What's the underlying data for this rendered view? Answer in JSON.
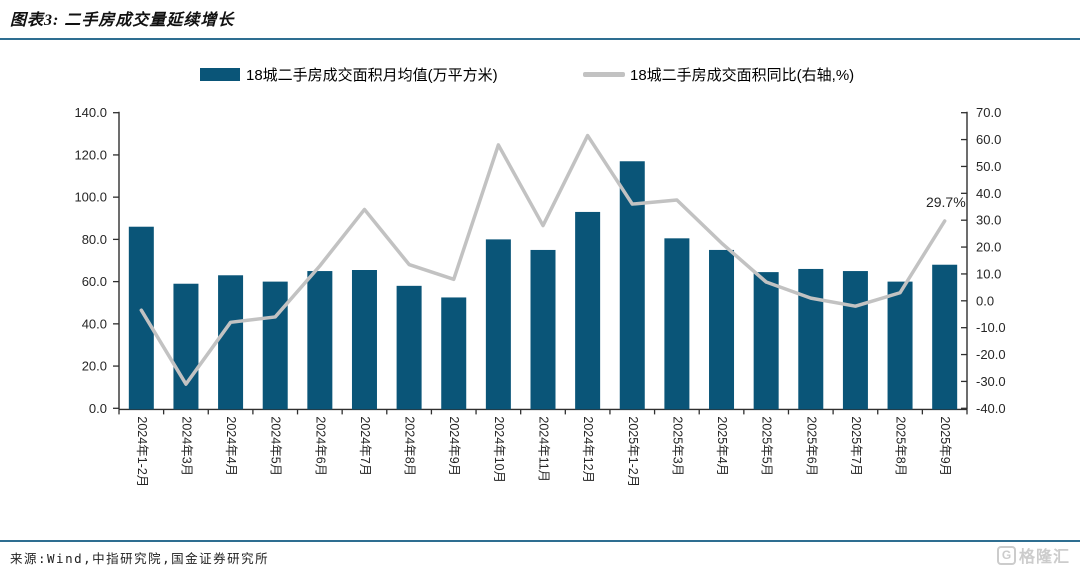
{
  "header": {
    "title": "图表3: 二手房成交量延续增长"
  },
  "legend": {
    "items": [
      {
        "label": "18城二手房成交面积月均值(万平方米)",
        "marker": "bar",
        "color": "#0a5578"
      },
      {
        "label": "18城二手房成交面积同比(右轴,%)",
        "marker": "line",
        "color": "#c2c2c2"
      }
    ]
  },
  "chart_data": {
    "type": "combo",
    "grid": false,
    "legend_position": "top",
    "categories": [
      "2024年1-2月",
      "2024年3月",
      "2024年4月",
      "2024年5月",
      "2024年6月",
      "2024年7月",
      "2024年8月",
      "2024年9月",
      "2024年10月",
      "2024年11月",
      "2024年12月",
      "2025年1-2月",
      "2025年3月",
      "2025年4月",
      "2025年5月",
      "2025年6月",
      "2025年7月",
      "2025年8月",
      "2025年9月"
    ],
    "series": [
      {
        "name": "18城二手房成交面积月均值(万平方米)",
        "type": "bar",
        "axis": "left",
        "color": "#0a5578",
        "values": [
          86,
          59,
          63,
          60,
          65,
          65.5,
          58,
          52.5,
          80,
          75,
          93,
          117,
          80.5,
          75,
          64.5,
          66,
          65,
          60,
          68
        ]
      },
      {
        "name": "18城二手房成交面积同比(右轴,%)",
        "type": "line",
        "axis": "right",
        "color": "#c2c2c2",
        "values": [
          -3.5,
          -31,
          -8,
          -6,
          13,
          34,
          13.5,
          8,
          58,
          28,
          61.5,
          36,
          37.5,
          21.5,
          7,
          1,
          -2,
          3,
          29.7
        ]
      }
    ],
    "left_axis": {
      "min": 0,
      "max": 140,
      "step": 20,
      "tick_labels": [
        "0.0",
        "20.0",
        "40.0",
        "60.0",
        "80.0",
        "100.0",
        "120.0",
        "140.0"
      ]
    },
    "right_axis": {
      "min": -40,
      "max": 70,
      "step": 10,
      "tick_labels": [
        "-40.0",
        "-30.0",
        "-20.0",
        "-10.0",
        "0.0",
        "10.0",
        "20.0",
        "30.0",
        "40.0",
        "50.0",
        "60.0",
        "70.0"
      ]
    },
    "annotation": {
      "text": "29.7%",
      "series_index": 1,
      "point_index": 18
    }
  },
  "footer": {
    "source": "来源:Wind,中指研究院,国金证券研究所",
    "logo_text": "格隆汇"
  }
}
